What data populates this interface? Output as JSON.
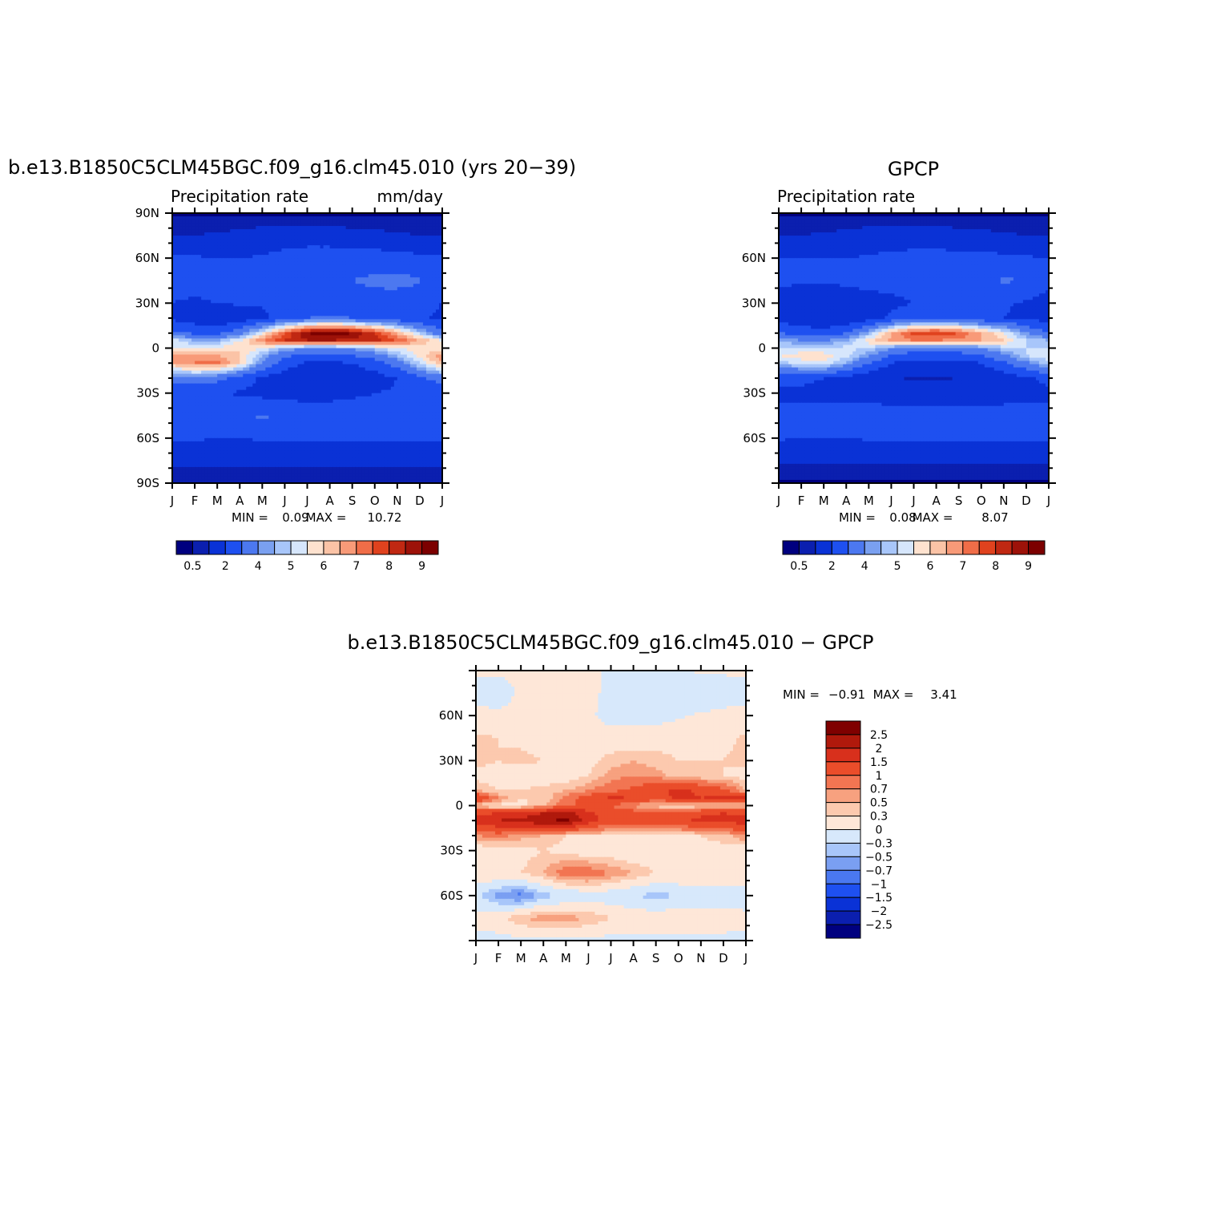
{
  "chart_data": [
    {
      "type": "heatmap",
      "title": "b.e13.B1850C5CLM45BGC.f09_g16.clm45.010 (yrs 20−39)",
      "subtitle_left": "Precipitation rate",
      "subtitle_right": "mm/day",
      "x_ticks": [
        "J",
        "F",
        "M",
        "A",
        "M",
        "J",
        "J",
        "A",
        "S",
        "O",
        "N",
        "D",
        "J"
      ],
      "y_ticks": [
        "90N",
        "60N",
        "30N",
        "0",
        "30S",
        "60S",
        "90S"
      ],
      "ylim": [
        -90,
        90
      ],
      "stats": {
        "min_label": "MIN =",
        "min": "0.09",
        "max_label": "MAX =",
        "max": "10.72"
      },
      "colorbar": {
        "orientation": "horizontal",
        "labels": [
          "0.5",
          "2",
          "4",
          "5",
          "6",
          "7",
          "8",
          "9"
        ]
      },
      "field": {
        "months": [
          1,
          2,
          3,
          4,
          5,
          6,
          7,
          8,
          9,
          10,
          11,
          12,
          1
        ],
        "lats": [
          90,
          75,
          60,
          45,
          30,
          20,
          10,
          5,
          0,
          -5,
          -10,
          -20,
          -30,
          -45,
          -60,
          -75,
          -90
        ],
        "values": [
          [
            0.4,
            0.4,
            0.4,
            0.4,
            0.4,
            0.4,
            0.4,
            0.4,
            0.4,
            0.4,
            0.4,
            0.4,
            0.4
          ],
          [
            1.0,
            1.0,
            1.1,
            1.2,
            1.4,
            1.5,
            1.5,
            1.4,
            1.3,
            1.2,
            1.1,
            1.0,
            1.0
          ],
          [
            2.1,
            2.1,
            2.0,
            2.0,
            2.1,
            2.3,
            2.5,
            2.6,
            2.5,
            2.5,
            2.4,
            2.2,
            2.1
          ],
          [
            2.3,
            2.2,
            2.3,
            2.4,
            2.6,
            2.6,
            2.6,
            2.7,
            3.0,
            3.2,
            3.3,
            3.1,
            2.3
          ],
          [
            2.0,
            1.9,
            2.0,
            2.1,
            2.1,
            2.0,
            2.1,
            2.3,
            2.5,
            2.6,
            2.5,
            2.3,
            2.0
          ],
          [
            1.8,
            1.5,
            1.3,
            1.4,
            1.8,
            2.5,
            3.0,
            3.2,
            3.0,
            2.6,
            2.3,
            2.1,
            1.8
          ],
          [
            3.3,
            2.8,
            2.7,
            3.6,
            5.5,
            7.5,
            9.0,
            9.5,
            9.0,
            8.0,
            6.5,
            4.8,
            3.3
          ],
          [
            5.5,
            4.5,
            4.5,
            5.5,
            7.0,
            8.0,
            8.5,
            8.5,
            8.3,
            8.2,
            7.5,
            6.5,
            5.5
          ],
          [
            5.5,
            5.5,
            5.5,
            6.0,
            5.5,
            4.5,
            4.0,
            4.0,
            4.2,
            4.8,
            5.5,
            5.8,
            5.5
          ],
          [
            6.8,
            7.0,
            6.5,
            6.0,
            4.5,
            3.2,
            2.7,
            2.8,
            3.0,
            3.5,
            4.5,
            5.8,
            6.8
          ],
          [
            6.5,
            7.0,
            7.2,
            6.0,
            4.0,
            2.5,
            1.8,
            1.8,
            2.0,
            2.5,
            3.5,
            5.0,
            6.5
          ],
          [
            3.5,
            3.8,
            3.3,
            2.6,
            1.8,
            1.4,
            1.3,
            1.3,
            1.4,
            1.6,
            2.0,
            2.8,
            3.5
          ],
          [
            2.0,
            2.0,
            2.0,
            1.9,
            1.7,
            1.5,
            1.5,
            1.6,
            1.8,
            2.0,
            2.1,
            2.1,
            2.0
          ],
          [
            2.4,
            2.5,
            2.7,
            3.0,
            3.1,
            3.0,
            2.8,
            2.7,
            2.6,
            2.5,
            2.5,
            2.5,
            2.4
          ],
          [
            2.2,
            2.1,
            2.0,
            2.0,
            2.1,
            2.2,
            2.2,
            2.1,
            2.1,
            2.2,
            2.2,
            2.2,
            2.2
          ],
          [
            1.2,
            1.2,
            1.2,
            1.2,
            1.2,
            1.2,
            1.2,
            1.2,
            1.2,
            1.2,
            1.2,
            1.2,
            1.2
          ],
          [
            0.5,
            0.5,
            0.5,
            0.5,
            0.5,
            0.5,
            0.5,
            0.5,
            0.5,
            0.5,
            0.5,
            0.5,
            0.5
          ]
        ]
      }
    },
    {
      "type": "heatmap",
      "title": "GPCP",
      "subtitle_left": "Precipitation rate",
      "subtitle_right": "",
      "x_ticks": [
        "J",
        "F",
        "M",
        "A",
        "M",
        "J",
        "J",
        "A",
        "S",
        "O",
        "N",
        "D",
        "J"
      ],
      "y_ticks": [
        "60N",
        "30N",
        "0",
        "30S",
        "60S"
      ],
      "ylim": [
        -90,
        90
      ],
      "stats": {
        "min_label": "MIN =",
        "min": "0.08",
        "max_label": "MAX =",
        "max": "8.07"
      },
      "colorbar": {
        "orientation": "horizontal",
        "labels": [
          "0.5",
          "2",
          "4",
          "5",
          "6",
          "7",
          "8",
          "9"
        ]
      },
      "field": {
        "months": [
          1,
          2,
          3,
          4,
          5,
          6,
          7,
          8,
          9,
          10,
          11,
          12,
          1
        ],
        "lats": [
          90,
          75,
          60,
          45,
          30,
          20,
          10,
          5,
          0,
          -5,
          -10,
          -20,
          -30,
          -45,
          -60,
          -75,
          -90
        ],
        "values": [
          [
            0.4,
            0.4,
            0.4,
            0.4,
            0.4,
            0.4,
            0.4,
            0.4,
            0.4,
            0.4,
            0.4,
            0.4,
            0.4
          ],
          [
            1.0,
            1.0,
            1.1,
            1.2,
            1.4,
            1.5,
            1.5,
            1.4,
            1.3,
            1.2,
            1.1,
            1.0,
            1.0
          ],
          [
            2.0,
            2.0,
            2.0,
            2.0,
            2.1,
            2.2,
            2.3,
            2.4,
            2.3,
            2.3,
            2.2,
            2.1,
            2.0
          ],
          [
            2.2,
            2.1,
            2.1,
            2.2,
            2.3,
            2.3,
            2.3,
            2.4,
            2.6,
            2.9,
            3.1,
            3.0,
            2.2
          ],
          [
            1.6,
            1.4,
            1.3,
            1.4,
            1.6,
            1.8,
            2.0,
            2.2,
            2.2,
            2.2,
            2.1,
            1.9,
            1.6
          ],
          [
            1.6,
            1.3,
            1.1,
            1.2,
            1.6,
            2.2,
            2.6,
            2.8,
            2.6,
            2.3,
            2.0,
            1.8,
            1.6
          ],
          [
            3.0,
            2.6,
            2.4,
            3.0,
            4.5,
            6.5,
            7.8,
            8.0,
            7.5,
            6.5,
            5.5,
            4.0,
            3.0
          ],
          [
            4.5,
            4.0,
            4.0,
            4.5,
            5.8,
            6.6,
            7.0,
            7.0,
            6.8,
            6.5,
            6.0,
            5.0,
            4.5
          ],
          [
            5.0,
            5.0,
            5.0,
            5.2,
            5.0,
            4.0,
            3.5,
            3.5,
            3.6,
            4.0,
            4.8,
            5.0,
            5.0
          ],
          [
            5.5,
            5.8,
            5.8,
            5.2,
            4.0,
            3.0,
            2.5,
            2.5,
            2.6,
            3.0,
            3.8,
            5.0,
            5.5
          ],
          [
            4.8,
            5.2,
            5.4,
            4.4,
            3.0,
            2.0,
            1.5,
            1.5,
            1.6,
            2.0,
            2.8,
            3.8,
            4.8
          ],
          [
            2.2,
            2.2,
            2.0,
            1.7,
            1.3,
            1.1,
            0.9,
            0.9,
            1.0,
            1.2,
            1.5,
            1.9,
            2.2
          ],
          [
            1.8,
            1.8,
            1.7,
            1.6,
            1.5,
            1.4,
            1.4,
            1.5,
            1.6,
            1.7,
            1.8,
            1.8,
            1.8
          ],
          [
            2.2,
            2.3,
            2.5,
            2.6,
            2.6,
            2.5,
            2.4,
            2.3,
            2.3,
            2.2,
            2.2,
            2.2,
            2.2
          ],
          [
            2.1,
            2.0,
            2.0,
            2.0,
            2.1,
            2.1,
            2.1,
            2.1,
            2.1,
            2.1,
            2.1,
            2.1,
            2.1
          ],
          [
            1.1,
            1.1,
            1.1,
            1.1,
            1.1,
            1.1,
            1.1,
            1.1,
            1.1,
            1.1,
            1.1,
            1.1,
            1.1
          ],
          [
            0.4,
            0.4,
            0.4,
            0.4,
            0.4,
            0.4,
            0.4,
            0.4,
            0.4,
            0.4,
            0.4,
            0.4,
            0.4
          ]
        ]
      }
    },
    {
      "type": "heatmap",
      "title": "b.e13.B1850C5CLM45BGC.f09_g16.clm45.010  −  GPCP",
      "x_ticks": [
        "J",
        "F",
        "M",
        "A",
        "M",
        "J",
        "J",
        "A",
        "S",
        "O",
        "N",
        "D",
        "J"
      ],
      "y_ticks": [
        "60N",
        "30N",
        "0",
        "30S",
        "60S"
      ],
      "ylim": [
        -90,
        90
      ],
      "stats": {
        "min_label": "MIN =",
        "min": "−0.91",
        "max_label": "MAX =",
        "max": "3.41"
      },
      "colorbar": {
        "orientation": "vertical",
        "labels": [
          "2.5",
          "2",
          "1.5",
          "1",
          "0.7",
          "0.5",
          "0.3",
          "0",
          "−0.3",
          "−0.5",
          "−0.7",
          "−1",
          "−1.5",
          "−2",
          "−2.5"
        ]
      },
      "field": {
        "months": [
          1,
          2,
          3,
          4,
          5,
          6,
          7,
          8,
          9,
          10,
          11,
          12,
          1
        ],
        "lats": [
          90,
          75,
          60,
          45,
          30,
          20,
          10,
          5,
          0,
          -5,
          -10,
          -20,
          -30,
          -45,
          -60,
          -75,
          -90
        ],
        "values": [
          [
            0.05,
            0.05,
            0.05,
            0.05,
            0.05,
            0.05,
            -0.05,
            -0.05,
            -0.1,
            -0.05,
            0.05,
            0.05,
            0.05
          ],
          [
            -0.1,
            -0.15,
            0.05,
            0.1,
            0.1,
            0.1,
            -0.1,
            -0.15,
            -0.2,
            -0.2,
            -0.3,
            -0.2,
            -0.1
          ],
          [
            0.1,
            0.05,
            0.1,
            0.05,
            0.0,
            0.05,
            -0.1,
            -0.1,
            -0.1,
            -0.05,
            0.05,
            0.1,
            0.1
          ],
          [
            0.35,
            0.3,
            0.2,
            0.15,
            0.1,
            0.1,
            0.1,
            0.1,
            0.15,
            0.2,
            0.2,
            0.2,
            0.35
          ],
          [
            0.4,
            0.3,
            0.4,
            0.3,
            0.2,
            0.2,
            0.4,
            0.5,
            0.4,
            0.3,
            0.3,
            0.3,
            0.4
          ],
          [
            0.2,
            0.15,
            0.1,
            0.1,
            0.1,
            0.3,
            0.6,
            0.7,
            0.6,
            0.4,
            0.3,
            0.3,
            0.2
          ],
          [
            0.5,
            0.3,
            0.3,
            0.4,
            0.5,
            0.7,
            0.9,
            1.1,
            1.4,
            1.6,
            1.4,
            1.1,
            0.5
          ],
          [
            1.6,
            0.7,
            0.3,
            0.3,
            0.8,
            1.2,
            1.6,
            1.5,
            1.3,
            1.6,
            1.5,
            1.6,
            1.6
          ],
          [
            0.3,
            0.2,
            0.2,
            0.5,
            0.9,
            1.2,
            1.0,
            0.6,
            0.3,
            0.2,
            0.3,
            0.4,
            0.3
          ],
          [
            1.4,
            1.5,
            1.6,
            2.0,
            2.3,
            1.6,
            1.3,
            1.2,
            1.3,
            1.3,
            1.4,
            1.5,
            1.4
          ],
          [
            1.7,
            2.0,
            2.2,
            2.4,
            2.6,
            1.7,
            1.2,
            1.2,
            1.3,
            1.4,
            1.6,
            1.7,
            1.7
          ],
          [
            0.7,
            0.8,
            0.6,
            0.5,
            0.3,
            0.3,
            0.3,
            0.3,
            0.2,
            0.2,
            0.3,
            0.4,
            0.7
          ],
          [
            0.1,
            0.1,
            0.2,
            0.3,
            0.2,
            0.1,
            0.1,
            0.0,
            0.1,
            0.2,
            0.2,
            0.2,
            0.1
          ],
          [
            0.2,
            0.3,
            0.3,
            0.5,
            0.9,
            0.9,
            0.7,
            0.5,
            0.3,
            0.3,
            0.3,
            0.2,
            0.2
          ],
          [
            -0.2,
            -0.6,
            -0.8,
            -0.4,
            -0.3,
            -0.2,
            -0.2,
            -0.3,
            -0.4,
            -0.3,
            -0.3,
            -0.2,
            -0.2
          ],
          [
            0.1,
            0.2,
            0.5,
            0.6,
            0.6,
            0.5,
            0.3,
            0.2,
            0.2,
            0.2,
            0.2,
            0.2,
            0.1
          ],
          [
            -0.1,
            -0.1,
            -0.1,
            -0.1,
            -0.1,
            -0.1,
            -0.1,
            -0.1,
            -0.1,
            -0.1,
            -0.1,
            -0.1,
            -0.1
          ]
        ]
      }
    }
  ],
  "colors": {
    "precip_palette": [
      "#00007f",
      "#0b1faf",
      "#0a32d6",
      "#1e50f0",
      "#4c78f0",
      "#7aa0f0",
      "#a8c6fa",
      "#d6e6fc",
      "#fee2cf",
      "#fbc3a6",
      "#f89a78",
      "#f06d48",
      "#e0421e",
      "#c02812",
      "#9d1209",
      "#7c0000"
    ],
    "diff_palette": [
      "#00007f",
      "#0b1faf",
      "#0a32d6",
      "#1e50f0",
      "#4a78f0",
      "#7a9ff2",
      "#a8c6fa",
      "#d7e8fb",
      "#fee7d8",
      "#fcc9ae",
      "#f7a17f",
      "#f27552",
      "#ea4d2a",
      "#d8301c",
      "#b0190c",
      "#7f0000"
    ]
  }
}
